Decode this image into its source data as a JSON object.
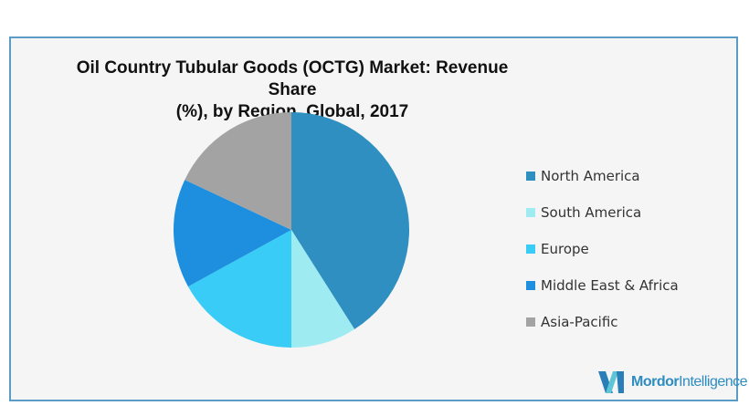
{
  "chart_data": {
    "type": "pie",
    "title": "Oil Country Tubular Goods (OCTG) Market: Revenue Share (%),  by Region, Global, 2017",
    "title_line1": "Oil Country Tubular Goods (OCTG) Market: Revenue Share",
    "title_line2": "(%),  by Region, Global, 2017",
    "categories": [
      "North America",
      "South America",
      "Europe",
      "Middle East & Africa",
      "Asia-Pacific"
    ],
    "values": [
      41,
      9,
      17,
      15,
      18
    ],
    "colors": [
      "#2e8fc0",
      "#9eebf2",
      "#38ccf6",
      "#1d8fde",
      "#a3a3a3"
    ],
    "start": "12 o'clock, clockwise",
    "legend_position": "right"
  },
  "logo": {
    "brand_bold": "Mordor",
    "brand_light": "Intelligence"
  }
}
